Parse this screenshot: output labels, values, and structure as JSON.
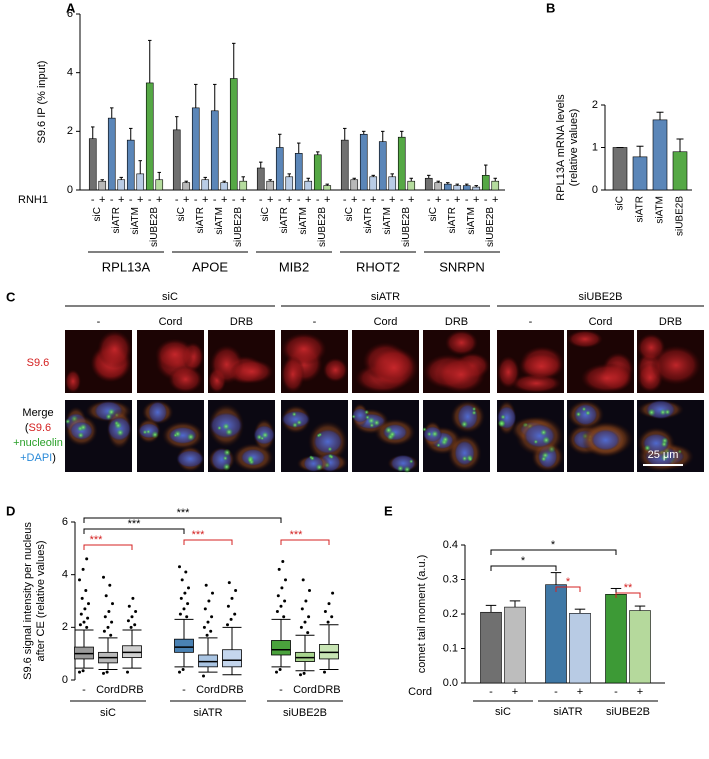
{
  "panel_labels": [
    "A",
    "B",
    "C",
    "D",
    "E"
  ],
  "panel_c": {
    "columns": [
      "siC",
      "siATR",
      "siUBE2B"
    ],
    "treatments": [
      "-",
      "Cord",
      "DRB"
    ],
    "row_label": "S9.6",
    "merge_label": [
      "Merge",
      "(",
      "S9.6",
      "+nucleolin",
      "+DAPI",
      ")"
    ],
    "scale_bar": "25 μm"
  },
  "chart_data": [
    {
      "type": "bar",
      "ylabel": "S9.6 IP (% input)",
      "categories": [
        "RPL13A",
        "APOE",
        "MIB2",
        "RHOT2",
        "SNRPN"
      ],
      "subgroups": [
        "siC",
        "siATR",
        "siATM",
        "siUBE2B"
      ],
      "treatment_label": "RNH1",
      "treatments": [
        "-",
        "+"
      ],
      "ylim": [
        0,
        6
      ],
      "yticks": [
        0,
        2,
        4,
        6
      ],
      "series": [
        {
          "color": "#707070",
          "values": [
            1.75,
            2.05,
            0.75,
            1.7,
            0.4
          ],
          "errors": [
            0.4,
            0.45,
            0.2,
            0.4,
            0.1
          ]
        },
        {
          "color": "#b8b8b8",
          "values": [
            0.3,
            0.25,
            0.3,
            0.35,
            0.25
          ],
          "errors": [
            0.05,
            0.05,
            0.05,
            0.05,
            0.05
          ]
        },
        {
          "color": "#5b86b8",
          "values": [
            2.45,
            2.8,
            1.45,
            1.9,
            0.2
          ],
          "errors": [
            0.35,
            0.8,
            0.45,
            0.1,
            0.05
          ]
        },
        {
          "color": "#b9cce6",
          "values": [
            0.35,
            0.35,
            0.45,
            0.45,
            0.15
          ],
          "errors": [
            0.08,
            0.08,
            0.1,
            0.05,
            0.05
          ]
        },
        {
          "color": "#5b86b8",
          "values": [
            1.7,
            2.7,
            1.25,
            1.65,
            0.15
          ],
          "errors": [
            0.4,
            0.9,
            0.35,
            0.35,
            0.05
          ]
        },
        {
          "color": "#b9cce6",
          "values": [
            0.55,
            0.25,
            0.3,
            0.45,
            0.1
          ],
          "errors": [
            0.45,
            0.05,
            0.1,
            0.1,
            0.05
          ]
        },
        {
          "color": "#55a845",
          "values": [
            3.65,
            3.8,
            1.2,
            1.8,
            0.5
          ],
          "errors": [
            1.45,
            1.2,
            0.1,
            0.2,
            0.35
          ]
        },
        {
          "color": "#b5dc9e",
          "values": [
            0.35,
            0.3,
            0.15,
            0.3,
            0.3
          ],
          "errors": [
            0.25,
            0.15,
            0.05,
            0.1,
            0.1
          ]
        }
      ]
    },
    {
      "type": "bar",
      "ylabel": [
        "RPL13A mRNA levels",
        "(relative values)"
      ],
      "categories": [
        "siC",
        "siATR",
        "siATM",
        "siUBE2B"
      ],
      "values": [
        1.0,
        0.78,
        1.65,
        0.9
      ],
      "errors": [
        0,
        0.25,
        0.18,
        0.3
      ],
      "colors": [
        "#707070",
        "#5b86b8",
        "#5b86b8",
        "#55a845"
      ],
      "ylim": [
        0,
        2
      ],
      "yticks": [
        0,
        1,
        2
      ]
    },
    {
      "type": "box",
      "ylabel": [
        "S9.6 signal intensity per nucleus",
        "after CE (relative values)"
      ],
      "categories": [
        "siC",
        "siATR",
        "siUBE2B"
      ],
      "conditions": [
        "-",
        "Cord",
        "DRB"
      ],
      "ylim": [
        0,
        6
      ],
      "yticks": [
        0,
        2,
        4,
        6
      ],
      "boxes": [
        {
          "color": "#9a9a9a",
          "whisker_low": 0.45,
          "q1": 0.8,
          "median": 1.0,
          "q3": 1.25,
          "whisker_high": 1.9,
          "outliers": [
            0.3,
            0.35,
            2.0,
            2.1,
            2.2,
            2.35,
            2.5,
            2.7,
            2.9,
            3.1,
            3.4,
            3.8,
            4.2,
            4.6
          ]
        },
        {
          "color": "#b9b9b9",
          "whisker_low": 0.4,
          "q1": 0.65,
          "median": 0.85,
          "q3": 1.05,
          "whisker_high": 1.6,
          "outliers": [
            0.25,
            0.3,
            1.7,
            1.85,
            2.0,
            2.2,
            2.4,
            2.6,
            2.9,
            3.2,
            3.6,
            3.9
          ]
        },
        {
          "color": "#d0d0d0",
          "whisker_low": 0.45,
          "q1": 0.85,
          "median": 1.05,
          "q3": 1.3,
          "whisker_high": 1.9,
          "outliers": [
            0.3,
            2.0,
            2.1,
            2.25,
            2.4,
            2.6,
            2.8,
            3.1
          ]
        },
        {
          "color": "#4a82b4",
          "whisker_low": 0.5,
          "q1": 1.05,
          "median": 1.25,
          "q3": 1.55,
          "whisker_high": 2.3,
          "outliers": [
            0.3,
            0.4,
            2.4,
            2.5,
            2.7,
            2.9,
            3.1,
            3.3,
            3.5,
            3.8,
            4.1,
            4.3
          ]
        },
        {
          "color": "#a9c4e2",
          "whisker_low": 0.3,
          "q1": 0.5,
          "median": 0.7,
          "q3": 0.95,
          "whisker_high": 1.6,
          "outliers": [
            0.15,
            1.7,
            1.85,
            2.0,
            2.2,
            2.4,
            2.7,
            3.0,
            3.3,
            3.6
          ]
        },
        {
          "color": "#c4d6ed",
          "whisker_low": 0.2,
          "q1": 0.5,
          "median": 0.75,
          "q3": 1.15,
          "whisker_high": 2.0,
          "outliers": [
            2.1,
            2.3,
            2.5,
            2.8,
            3.1,
            3.4,
            3.7
          ]
        },
        {
          "color": "#4aa23c",
          "whisker_low": 0.5,
          "q1": 0.95,
          "median": 1.15,
          "q3": 1.5,
          "whisker_high": 2.3,
          "outliers": [
            0.3,
            0.4,
            2.4,
            2.6,
            2.8,
            3.0,
            3.2,
            3.5,
            3.8,
            4.2,
            4.5
          ]
        },
        {
          "color": "#a8d48e",
          "whisker_low": 0.35,
          "q1": 0.7,
          "median": 0.85,
          "q3": 1.05,
          "whisker_high": 1.7,
          "outliers": [
            0.2,
            0.25,
            1.8,
            2.0,
            2.2,
            2.4,
            2.7,
            3.0,
            3.4,
            3.8
          ]
        },
        {
          "color": "#c8e5b4",
          "whisker_low": 0.4,
          "q1": 0.8,
          "median": 1.05,
          "q3": 1.35,
          "whisker_high": 2.1,
          "outliers": [
            0.3,
            2.2,
            2.4,
            2.6,
            2.9,
            3.3
          ]
        }
      ],
      "annotations": [
        {
          "text": "***",
          "color": "#000000"
        },
        {
          "text": "***",
          "color": "#000000"
        },
        {
          "text": "***",
          "color": "#d42020"
        },
        {
          "text": "***",
          "color": "#d42020"
        },
        {
          "text": "***",
          "color": "#d42020"
        }
      ]
    },
    {
      "type": "bar",
      "ylabel": "comet tail moment (a.u.)",
      "categories": [
        "siC",
        "siATR",
        "siUBE2B"
      ],
      "treatment_label": "Cord",
      "treatments": [
        "-",
        "+"
      ],
      "ylim": [
        0,
        0.4
      ],
      "yticks": [
        {
          "value": 0,
          "label": "0.0"
        },
        {
          "value": 0.1,
          "label": "0.1"
        },
        {
          "value": 0.2,
          "label": "0.2"
        },
        {
          "value": 0.3,
          "label": "0.3"
        },
        {
          "value": 0.4,
          "label": "0.4"
        }
      ],
      "series": [
        {
          "colors": [
            "#707070",
            "#3f78a6",
            "#3d9a36"
          ],
          "values": [
            0.205,
            0.285,
            0.257
          ],
          "errors": [
            0.02,
            0.035,
            0.017
          ]
        },
        {
          "colors": [
            "#bdbdbd",
            "#b8cbe4",
            "#b5d99c"
          ],
          "values": [
            0.22,
            0.202,
            0.21
          ],
          "errors": [
            0.018,
            0.012,
            0.013
          ]
        }
      ],
      "annotations": [
        {
          "text": "*",
          "color": "#000000"
        },
        {
          "text": "*",
          "color": "#000000"
        },
        {
          "text": "*",
          "color": "#d42020"
        },
        {
          "text": "**",
          "color": "#d42020"
        }
      ]
    }
  ]
}
